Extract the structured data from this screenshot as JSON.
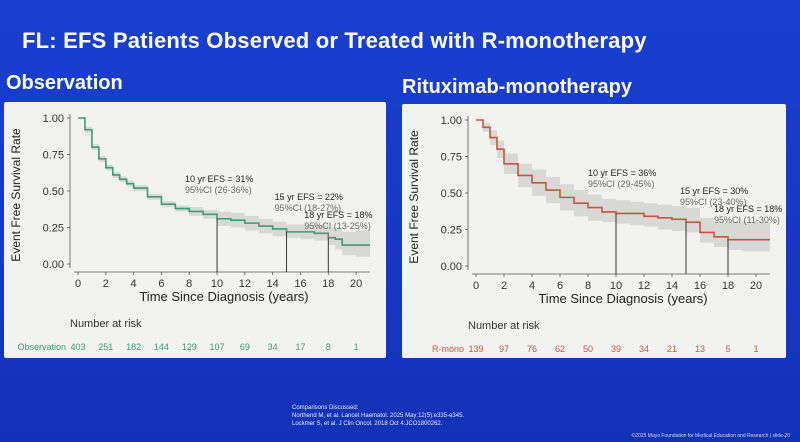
{
  "slide": {
    "title": "FL: EFS Patients Observed or Treated with R-monotherapy"
  },
  "panels": {
    "left_heading": "Observation",
    "right_heading": "Rituximab-monotherapy"
  },
  "footer": {
    "refs_header": "Comparisons Discussed:",
    "ref1": "Northend M, et al. Lancet Haematol. 2025 May;12(5):e335-e345.",
    "ref2": "Lockmer S, et al. J Clin Oncol. 2018 Oct 4:JCO1800262.",
    "copyright": "©2025 Mayo Foundation for Medical Education and Research | slide-20"
  },
  "colors": {
    "observation": "#3d9a7a",
    "rmono": "#c8553a",
    "ci_band": "#cfcfcf"
  },
  "chart_data": [
    {
      "type": "line",
      "title": "Observation",
      "xlabel": "Time Since Diagnosis (years)",
      "ylabel": "Event Free Survival Rate",
      "xlim": [
        0,
        21
      ],
      "ylim": [
        0,
        1
      ],
      "x_ticks": [
        0,
        2,
        4,
        6,
        8,
        10,
        12,
        14,
        16,
        18,
        20
      ],
      "y_ticks": [
        0.0,
        0.25,
        0.5,
        0.75,
        1.0
      ],
      "y_tick_labels": [
        "0.00",
        "0.25",
        "0.50",
        "0.75",
        "1.00"
      ],
      "series": [
        {
          "name": "Observation",
          "x": [
            0,
            0.5,
            1,
            1.5,
            2,
            2.5,
            3,
            3.5,
            4,
            5,
            6,
            7,
            8,
            9,
            10,
            11,
            12,
            13,
            14,
            15,
            16,
            17,
            18,
            18.5,
            19,
            20,
            21
          ],
          "y": [
            1.0,
            0.92,
            0.8,
            0.72,
            0.66,
            0.61,
            0.58,
            0.55,
            0.52,
            0.46,
            0.41,
            0.38,
            0.36,
            0.34,
            0.31,
            0.3,
            0.28,
            0.26,
            0.24,
            0.22,
            0.22,
            0.21,
            0.18,
            0.17,
            0.13,
            0.13,
            0.13
          ],
          "ci_lower": [
            1.0,
            0.9,
            0.78,
            0.7,
            0.64,
            0.59,
            0.56,
            0.53,
            0.5,
            0.44,
            0.39,
            0.36,
            0.33,
            0.31,
            0.26,
            0.25,
            0.23,
            0.21,
            0.19,
            0.18,
            0.17,
            0.16,
            0.13,
            0.1,
            0.06,
            0.05,
            0.05
          ],
          "ci_upper": [
            1.0,
            0.94,
            0.82,
            0.74,
            0.68,
            0.63,
            0.6,
            0.57,
            0.54,
            0.48,
            0.43,
            0.4,
            0.39,
            0.37,
            0.36,
            0.35,
            0.33,
            0.31,
            0.29,
            0.27,
            0.27,
            0.27,
            0.25,
            0.25,
            0.22,
            0.23,
            0.23
          ]
        }
      ],
      "annotations": [
        {
          "x": 10,
          "y": 0.31,
          "label": "10 yr EFS = 31%",
          "ci": "95%CI (26-36%)"
        },
        {
          "x": 15,
          "y": 0.22,
          "label": "15 yr EFS = 22%",
          "ci": "95%CI (18-27%)"
        },
        {
          "x": 18,
          "y": 0.18,
          "label": "18 yr EFS = 18%",
          "ci": "95%CI (13-25%)"
        }
      ],
      "risk_table": {
        "header": "Number at risk",
        "row_label": "Observation",
        "values": [
          403,
          251,
          182,
          144,
          129,
          107,
          69,
          34,
          17,
          8,
          1
        ]
      }
    },
    {
      "type": "line",
      "title": "Rituximab-monotherapy",
      "xlabel": "Time Since Diagnosis (years)",
      "ylabel": "Event Free Survival Rate",
      "xlim": [
        0,
        21
      ],
      "ylim": [
        0,
        1
      ],
      "x_ticks": [
        0,
        2,
        4,
        6,
        8,
        10,
        12,
        14,
        16,
        18,
        20
      ],
      "y_ticks": [
        0.0,
        0.25,
        0.5,
        0.75,
        1.0
      ],
      "y_tick_labels": [
        "0.00",
        "0.25",
        "0.50",
        "0.75",
        "1.00"
      ],
      "series": [
        {
          "name": "R-mono",
          "x": [
            0,
            0.5,
            1,
            1.5,
            2,
            3,
            4,
            5,
            6,
            7,
            8,
            9,
            10,
            11,
            12,
            13,
            14,
            15,
            16,
            17,
            18,
            19,
            20,
            21
          ],
          "y": [
            1.0,
            0.95,
            0.88,
            0.8,
            0.7,
            0.62,
            0.57,
            0.52,
            0.47,
            0.43,
            0.4,
            0.37,
            0.36,
            0.36,
            0.34,
            0.33,
            0.32,
            0.3,
            0.23,
            0.2,
            0.18,
            0.18,
            0.18,
            0.18
          ],
          "ci_lower": [
            1.0,
            0.92,
            0.83,
            0.74,
            0.63,
            0.54,
            0.48,
            0.43,
            0.38,
            0.34,
            0.31,
            0.3,
            0.29,
            0.28,
            0.27,
            0.25,
            0.24,
            0.23,
            0.16,
            0.13,
            0.11,
            0.1,
            0.1,
            0.1
          ],
          "ci_upper": [
            1.0,
            0.98,
            0.93,
            0.86,
            0.77,
            0.7,
            0.66,
            0.61,
            0.56,
            0.52,
            0.49,
            0.46,
            0.45,
            0.44,
            0.43,
            0.42,
            0.41,
            0.4,
            0.33,
            0.3,
            0.3,
            0.3,
            0.3,
            0.3
          ]
        }
      ],
      "annotations": [
        {
          "x": 10,
          "y": 0.36,
          "label": "10 yr EFS = 36%",
          "ci": "95%CI (29-45%)"
        },
        {
          "x": 15,
          "y": 0.3,
          "label": "15 yr EFS = 30%",
          "ci": "95%CI (23-40%)"
        },
        {
          "x": 18,
          "y": 0.18,
          "label": "18 yr EFS = 18%",
          "ci": "95%CI (11-30%)"
        }
      ],
      "risk_table": {
        "header": "Number at risk",
        "row_label": "R-mono",
        "values": [
          139,
          97,
          76,
          62,
          50,
          39,
          34,
          21,
          13,
          5,
          1
        ]
      }
    }
  ]
}
